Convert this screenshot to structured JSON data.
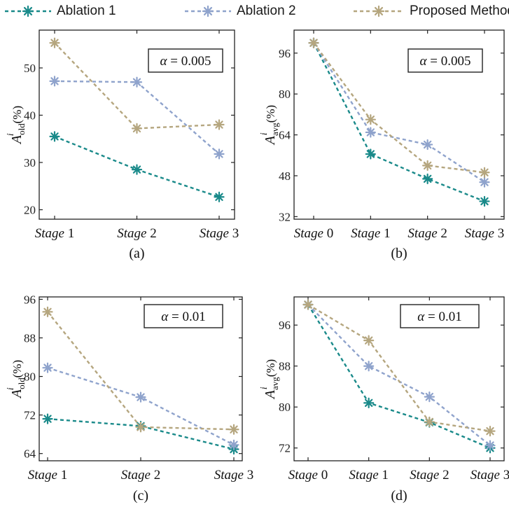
{
  "legend": {
    "entries": [
      {
        "name": "Ablation 1",
        "color": "#1a8a8a"
      },
      {
        "name": "Ablation 2",
        "color": "#8fa3cc"
      },
      {
        "name": "Proposed Method",
        "color": "#b5a67f"
      }
    ]
  },
  "y_unit": "(%)",
  "chart_data": [
    {
      "type": "line",
      "panel_label": "(a)",
      "ylabel_main": "A",
      "ylabel_sup": "i",
      "ylabel_sub": "old",
      "alpha_label": "α = 0.005",
      "categories_prefix": [
        "Stage",
        "Stage",
        "Stage"
      ],
      "categories_num": [
        "1",
        "2",
        "3"
      ],
      "categories": [
        "Stage 1",
        "Stage 2",
        "Stage 3"
      ],
      "ylim": [
        18,
        58
      ],
      "yticks": [
        20,
        30,
        40,
        50
      ],
      "series": [
        {
          "name": "Ablation 1",
          "values": [
            35.5,
            28.5,
            22.7
          ]
        },
        {
          "name": "Ablation 2",
          "values": [
            47.2,
            47.0,
            31.8
          ]
        },
        {
          "name": "Proposed Method",
          "values": [
            55.3,
            37.2,
            38.0
          ]
        }
      ]
    },
    {
      "type": "line",
      "panel_label": "(b)",
      "ylabel_main": "A",
      "ylabel_sup": "i",
      "ylabel_sub": "avg",
      "alpha_label": "α = 0.005",
      "categories_prefix": [
        "Stage",
        "Stage",
        "Stage",
        "Stage"
      ],
      "categories_num": [
        "0",
        "1",
        "2",
        "3"
      ],
      "categories": [
        "Stage 0",
        "Stage 1",
        "Stage 2",
        "Stage 3"
      ],
      "ylim": [
        31,
        105
      ],
      "yticks": [
        32,
        48,
        64,
        80,
        96
      ],
      "series": [
        {
          "name": "Ablation 1",
          "values": [
            100,
            56.5,
            46.8,
            38.0
          ]
        },
        {
          "name": "Ablation 2",
          "values": [
            100,
            65.0,
            60.2,
            45.5
          ]
        },
        {
          "name": "Proposed Method",
          "values": [
            100,
            70.0,
            52.0,
            49.3
          ]
        }
      ]
    },
    {
      "type": "line",
      "panel_label": "(c)",
      "ylabel_main": "A",
      "ylabel_sup": "i",
      "ylabel_sub": "old",
      "alpha_label": "α = 0.01",
      "categories_prefix": [
        "Stage",
        "Stage",
        "Stage"
      ],
      "categories_num": [
        "1",
        "2",
        "3"
      ],
      "categories": [
        "Stage 1",
        "Stage 2",
        "Stage 3"
      ],
      "ylim": [
        62.5,
        96.5
      ],
      "yticks": [
        64,
        72,
        80,
        88,
        96
      ],
      "series": [
        {
          "name": "Ablation 1",
          "values": [
            71.2,
            69.7,
            64.9
          ]
        },
        {
          "name": "Ablation 2",
          "values": [
            81.8,
            75.7,
            65.8
          ]
        },
        {
          "name": "Proposed Method",
          "values": [
            93.4,
            69.5,
            69.0
          ]
        }
      ]
    },
    {
      "type": "line",
      "panel_label": "(d)",
      "ylabel_main": "A",
      "ylabel_sup": "i",
      "ylabel_sub": "avg",
      "alpha_label": "α = 0.01",
      "categories_prefix": [
        "Stage",
        "Stage",
        "Stage",
        "Stage"
      ],
      "categories_num": [
        "0",
        "1",
        "2",
        "3"
      ],
      "categories": [
        "Stage 0",
        "Stage 1",
        "Stage 2",
        "Stage 3"
      ],
      "ylim": [
        69.5,
        101.5
      ],
      "yticks": [
        72,
        80,
        88,
        96
      ],
      "series": [
        {
          "name": "Ablation 1",
          "values": [
            100,
            80.8,
            77.0,
            72.0
          ]
        },
        {
          "name": "Ablation 2",
          "values": [
            100,
            88.0,
            82.0,
            72.5
          ]
        },
        {
          "name": "Proposed Method",
          "values": [
            100,
            93.0,
            77.1,
            75.3
          ]
        }
      ]
    }
  ]
}
